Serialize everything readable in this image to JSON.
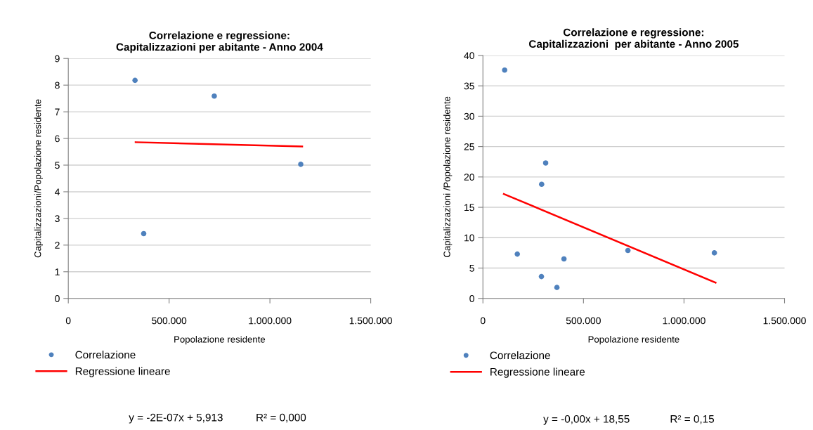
{
  "chart_data": [
    {
      "type": "scatter",
      "title": "Correlazione e regressione:\nCapitalizzazioni per abitante - Anno 2004",
      "xlabel": "Popolazione residente",
      "ylabel": "Capitalizzazioni/Popolazione residente",
      "series": [
        {
          "name": "Correlazione",
          "color": "#4f81bd",
          "marker": "circle",
          "x": [
            331000,
            724000,
            374000,
            1153000
          ],
          "values": [
            8.18,
            7.59,
            2.43,
            5.03
          ]
        },
        {
          "name": "Regressione lineare",
          "type": "line",
          "color": "#ff0000",
          "marker": "none",
          "line_style": "solid",
          "x": [
            334000,
            1160000
          ],
          "values": [
            5.86,
            5.7
          ]
        }
      ],
      "xlim": [
        0,
        1500000
      ],
      "xticks": [
        0,
        {
          "value": 500000,
          "label": "500.000"
        },
        {
          "value": 1000000,
          "label": "1.000.000"
        },
        {
          "value": 1500000,
          "label": "1.500.000"
        }
      ],
      "ylim": [
        0,
        9
      ],
      "yticks": [
        0,
        1,
        2,
        3,
        4,
        5,
        6,
        7,
        8,
        9
      ],
      "grid": "y",
      "legend": "bottom",
      "annotations": [
        "y = -2E-07x + 5,913",
        "R² = 0,000"
      ]
    },
    {
      "type": "scatter",
      "title": "Correlazione e regressione:\nCapitalizzazioni  per abitante - Anno 2005",
      "xlabel": "Popolazione residente",
      "ylabel": "Capitalizzazioni /Popolazione residente",
      "series": [
        {
          "name": "Correlazione",
          "color": "#4f81bd",
          "marker": "circle",
          "x": [
            108000,
            171000,
            292000,
            312000,
            291000,
            368000,
            403000,
            721000,
            1151000
          ],
          "values": [
            37.6,
            7.3,
            18.8,
            22.3,
            3.6,
            1.8,
            6.5,
            7.9,
            7.5
          ]
        },
        {
          "name": "Regressione lineare",
          "type": "line",
          "color": "#ff0000",
          "marker": "none",
          "line_style": "solid",
          "x": [
            104000,
            1157000
          ],
          "values": [
            17.2,
            2.6
          ]
        }
      ],
      "xlim": [
        0,
        1500000
      ],
      "xticks": [
        0,
        {
          "value": 500000,
          "label": "500.000"
        },
        {
          "value": 1000000,
          "label": "1.000.000"
        },
        {
          "value": 1500000,
          "label": "1.500.000"
        }
      ],
      "ylim": [
        0,
        40
      ],
      "yticks": [
        0,
        5,
        10,
        15,
        20,
        25,
        30,
        35,
        40
      ],
      "grid": "y",
      "legend": "bottom",
      "annotations": [
        "y = -0,00x + 18,55",
        "R² = 0,15"
      ]
    }
  ]
}
